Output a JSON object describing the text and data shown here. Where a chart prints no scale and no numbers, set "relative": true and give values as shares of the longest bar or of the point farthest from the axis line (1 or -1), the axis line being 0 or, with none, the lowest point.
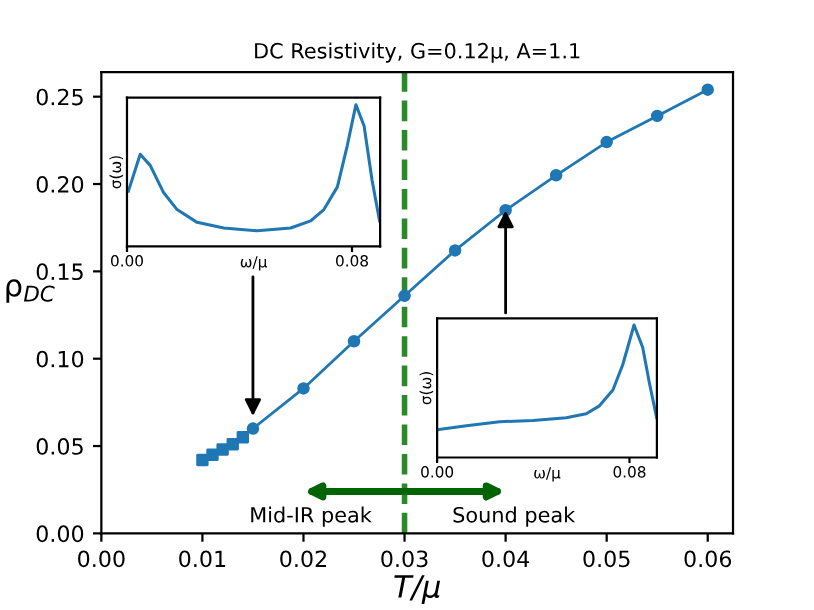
{
  "chart_data": [
    {
      "type": "line",
      "title": "DC Resistivity, G=0.12μ, A=1.1",
      "xlabel": "T/μ",
      "ylabel": "ρ$_{DC}$",
      "xlim": [
        0,
        0.0625
      ],
      "xticks": [
        {
          "value": 0,
          "label": "0.00"
        },
        {
          "value": 0.01,
          "label": "0.01"
        },
        {
          "value": 0.02,
          "label": "0.02"
        },
        {
          "value": 0.03,
          "label": "0.03"
        },
        {
          "value": 0.04,
          "label": "0.04"
        },
        {
          "value": 0.05,
          "label": "0.05"
        },
        {
          "value": 0.06,
          "label": "0.06"
        }
      ],
      "ylim": [
        0,
        0.264
      ],
      "yticks": [
        {
          "value": 0,
          "label": "0.00"
        },
        {
          "value": 0.05,
          "label": "0.05"
        },
        {
          "value": 0.1,
          "label": "0.10"
        },
        {
          "value": 0.15,
          "label": "0.15"
        },
        {
          "value": 0.2,
          "label": "0.20"
        },
        {
          "value": 0.25,
          "label": "0.25"
        }
      ],
      "series": [
        {
          "type": "scatter",
          "color": "#1f77b4",
          "marker": "square",
          "x": [
            0.01,
            0.011,
            0.012,
            0.013,
            0.014
          ],
          "values": [
            0.042,
            0.045,
            0.048,
            0.051,
            0.055
          ]
        },
        {
          "color": "#1f77b4",
          "marker": "circle",
          "x": [
            0.015,
            0.02,
            0.025,
            0.03,
            0.035,
            0.04,
            0.045,
            0.05,
            0.055,
            0.06
          ],
          "values": [
            0.06,
            0.083,
            0.11,
            0.136,
            0.162,
            0.185,
            0.205,
            0.224,
            0.239,
            0.254
          ]
        }
      ],
      "ref_lines": [
        {
          "axis": "x",
          "value": 0.03,
          "color": "#2a8a2a",
          "line_style": "dashed"
        }
      ],
      "annotations": [
        "Mid-IR peak",
        "Sound peak"
      ]
    },
    {
      "type": "line",
      "relative": true,
      "xlabel": "ω/μ",
      "ylabel": "σ(ω)",
      "xlim": [
        0,
        0.09
      ],
      "xticks": [
        {
          "value": 0,
          "label": "0.00"
        },
        {
          "value": 0.08,
          "label": "0.08"
        }
      ],
      "series": [
        {
          "color": "#1f77b4",
          "x": [
            0.0005,
            0.0047,
            0.0083,
            0.013,
            0.0178,
            0.0249,
            0.0344,
            0.0463,
            0.0582,
            0.0653,
            0.07,
            0.0748,
            0.0783,
            0.0814,
            0.0843,
            0.0871,
            0.0898
          ],
          "values": [
            0.39,
            0.65,
            0.57,
            0.38,
            0.26,
            0.17,
            0.13,
            0.11,
            0.13,
            0.18,
            0.26,
            0.42,
            0.71,
            1.0,
            0.85,
            0.47,
            0.18
          ]
        }
      ]
    },
    {
      "type": "line",
      "relative": true,
      "xlabel": "ω/μ",
      "ylabel": "σ(ω)",
      "xlim": [
        0,
        0.0914
      ],
      "xticks": [
        {
          "value": 0,
          "label": "0.00"
        },
        {
          "value": 0.08,
          "label": "0.08"
        }
      ],
      "series": [
        {
          "color": "#1f77b4",
          "x": [
            0,
            0.0122,
            0.026,
            0.0399,
            0.0537,
            0.062,
            0.0675,
            0.0731,
            0.0772,
            0.0819,
            0.0855,
            0.0883,
            0.0913
          ],
          "values": [
            0.21,
            0.24,
            0.27,
            0.28,
            0.3,
            0.33,
            0.39,
            0.51,
            0.7,
            1.0,
            0.83,
            0.56,
            0.3
          ]
        }
      ]
    }
  ]
}
